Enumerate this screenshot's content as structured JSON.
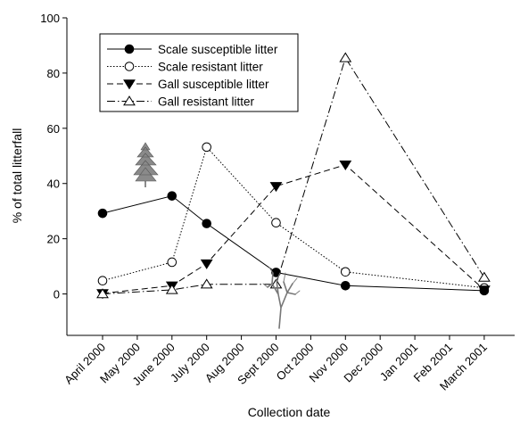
{
  "chart_data": {
    "type": "line",
    "xlabel": "Collection date",
    "ylabel": "% of total litterfall",
    "ylim": [
      -15,
      100
    ],
    "yticks": [
      0,
      20,
      40,
      60,
      80,
      100
    ],
    "categories": [
      "April 2000",
      "May 2000",
      "June 2000",
      "July 2000",
      "Aug 2000",
      "Sept 2000",
      "Oct 2000",
      "Nov 2000",
      "Dec 2000",
      "Jan 2001",
      "Feb 2001",
      "March 2001"
    ],
    "legend_position": "top-left",
    "grid": false,
    "series": [
      {
        "name": "Scale susceptible litter",
        "style": "solid",
        "marker": "filled-circle",
        "points": [
          [
            "April 2000",
            29.2
          ],
          [
            "June 2000",
            35.5
          ],
          [
            "July 2000",
            25.5
          ],
          [
            "Sept 2000",
            7.8
          ],
          [
            "Nov 2000",
            3.0
          ],
          [
            "March 2001",
            1.2
          ]
        ]
      },
      {
        "name": "Scale resistant litter",
        "style": "dotted",
        "marker": "open-circle",
        "points": [
          [
            "April 2000",
            4.8
          ],
          [
            "June 2000",
            11.5
          ],
          [
            "July 2000",
            53.2
          ],
          [
            "Sept 2000",
            25.8
          ],
          [
            "Nov 2000",
            8.0
          ],
          [
            "March 2001",
            2.2
          ]
        ]
      },
      {
        "name": "Gall susceptible litter",
        "style": "dashed",
        "marker": "filled-triangle-down",
        "points": [
          [
            "April 2000",
            0.2
          ],
          [
            "June 2000",
            3.0
          ],
          [
            "July 2000",
            11.0
          ],
          [
            "Sept 2000",
            39.0
          ],
          [
            "Nov 2000",
            46.8
          ],
          [
            "March 2001",
            1.5
          ]
        ]
      },
      {
        "name": "Gall resistant litter",
        "style": "dash-dot",
        "marker": "open-triangle-up",
        "points": [
          [
            "April 2000",
            0.0
          ],
          [
            "June 2000",
            1.5
          ],
          [
            "July 2000",
            3.5
          ],
          [
            "Sept 2000",
            3.5
          ],
          [
            "Nov 2000",
            85.5
          ],
          [
            "March 2001",
            6.0
          ]
        ]
      }
    ],
    "annotations": [
      {
        "type": "icon",
        "icon": "leafy-tree-icon",
        "near": "June 2000"
      },
      {
        "type": "icon",
        "icon": "bare-tree-icon",
        "near": "Sept 2000"
      }
    ]
  }
}
